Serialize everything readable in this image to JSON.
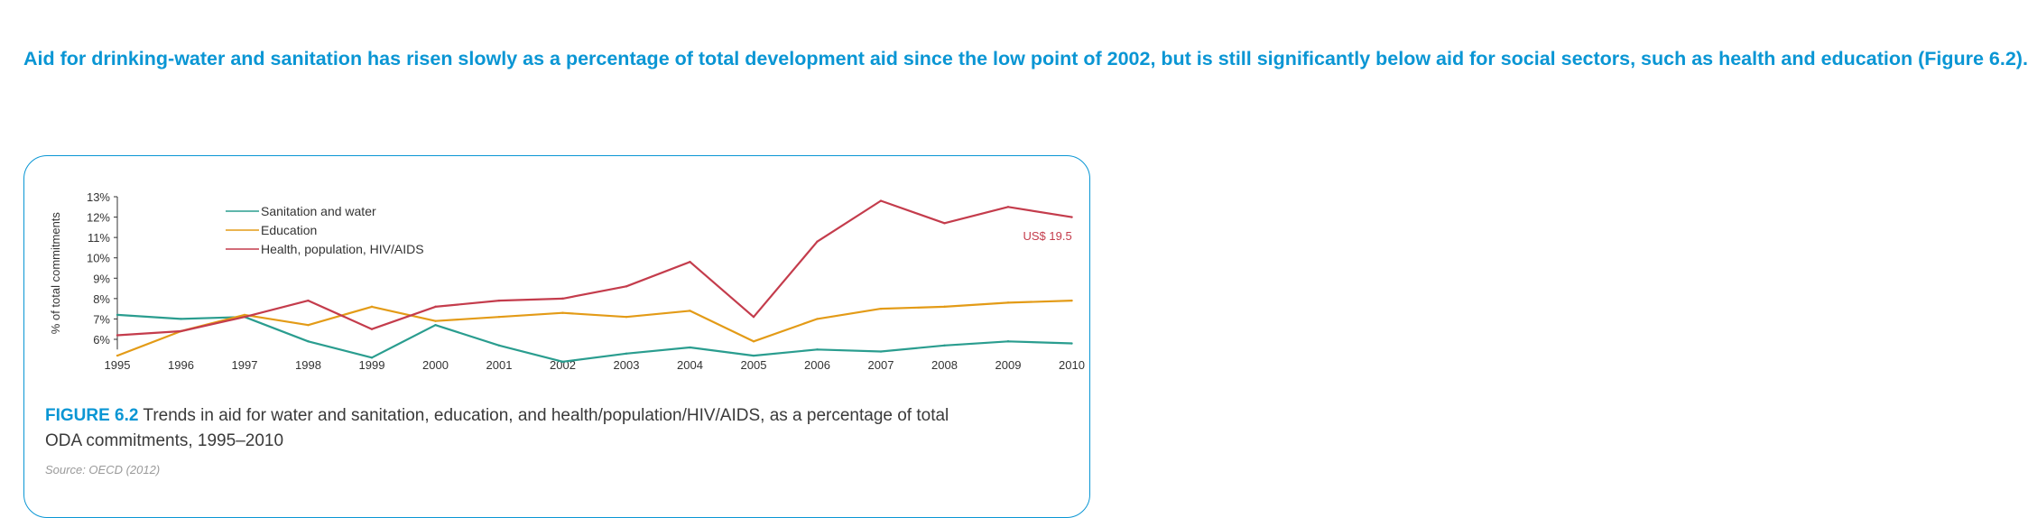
{
  "intro_text": "Aid for drinking-water and sanitation has risen slowly as a percentage of total development aid since the low point of 2002, but is still significantly below aid for social sectors, such as health and education (Figure 6.2).",
  "caption": {
    "label": "FIGURE 6.2",
    "line1": " Trends in aid for water and sanitation, education, and health/population/HIV/AIDS, as a percentage of total",
    "line2": "ODA commitments, 1995–2010"
  },
  "source": "Source: OECD (2012)",
  "colors": {
    "accent": "#0a96d4",
    "sanitation": "#2a9d8f",
    "education": "#e39b17",
    "health": "#c43c4c"
  },
  "chart_data": {
    "type": "line",
    "ylabel": "% of total commitments",
    "ylim": [
      5.5,
      13
    ],
    "yticks": [
      "6%",
      "7%",
      "8%",
      "9%",
      "10%",
      "11%",
      "12%",
      "13%"
    ],
    "x": [
      "1995",
      "1996",
      "1997",
      "1998",
      "1999",
      "2000",
      "2001",
      "2002",
      "2003",
      "2004",
      "2005",
      "2006",
      "2007",
      "2008",
      "2009",
      "2010"
    ],
    "series": [
      {
        "name": "Sanitation and water",
        "color": "#2a9d8f",
        "values": [
          7.2,
          7.0,
          7.1,
          5.9,
          5.1,
          6.7,
          5.7,
          4.9,
          5.3,
          5.6,
          5.2,
          5.5,
          5.4,
          5.7,
          5.9,
          5.8
        ]
      },
      {
        "name": "Education",
        "color": "#e39b17",
        "values": [
          5.2,
          6.4,
          7.2,
          6.7,
          7.6,
          6.9,
          7.1,
          7.3,
          7.1,
          7.4,
          5.9,
          7.0,
          7.5,
          7.6,
          7.8,
          7.9
        ]
      },
      {
        "name": "Health, population, HIV/AIDS",
        "color": "#c43c4c",
        "values": [
          6.2,
          6.4,
          7.1,
          7.9,
          6.5,
          7.6,
          7.9,
          8.0,
          8.6,
          9.8,
          7.1,
          10.8,
          12.8,
          11.7,
          12.5,
          12.0
        ]
      }
    ],
    "annotations": [
      {
        "text": "US$ 19.5",
        "x": "2010",
        "y": 11.1,
        "color": "#c43c4c"
      }
    ],
    "legend_position": "top-left"
  }
}
